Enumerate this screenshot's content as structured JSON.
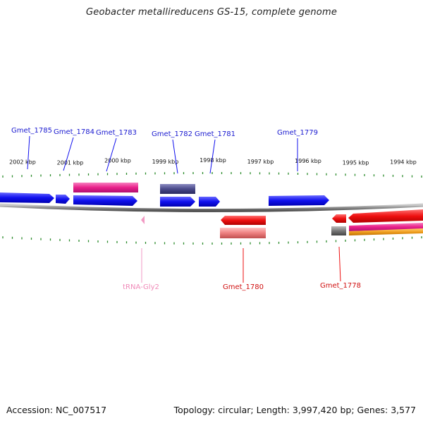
{
  "title": "Geobacter metallireducens GS-15, complete genome",
  "footer": {
    "accession": "Accession: NC_007517",
    "summary": "Topology: circular; Length: 3,997,420 bp; Genes: 3,577"
  },
  "colors": {
    "forward_cds": "#1010ee",
    "reverse_cds": "#ee1010",
    "rrna_pink": "#e8208a",
    "trna_pink": "#f29ac4",
    "dark_slate": "#4a4a8a",
    "salmon": "#ee8080",
    "grey_block": "#777777",
    "orange": "#f0a020",
    "tick_green": "#2a8a2a",
    "backbone": "#8a8a8a"
  },
  "kbp_ticks": [
    {
      "label": "2002 kbp",
      "kbp": 2002
    },
    {
      "label": "2001 kbp",
      "kbp": 2001
    },
    {
      "label": "2000 kbp",
      "kbp": 2000
    },
    {
      "label": "1999 kbp",
      "kbp": 1999
    },
    {
      "label": "1998 kbp",
      "kbp": 1998
    },
    {
      "label": "1997 kbp",
      "kbp": 1997
    },
    {
      "label": "1996 kbp",
      "kbp": 1996
    },
    {
      "label": "1995 kbp",
      "kbp": 1995
    },
    {
      "label": "1994 kbp",
      "kbp": 1994
    }
  ],
  "top_labels": [
    {
      "text": "Gmet_1785"
    },
    {
      "text": "Gmet_1784"
    },
    {
      "text": "Gmet_1783"
    },
    {
      "text": "Gmet_1782"
    },
    {
      "text": "Gmet_1781"
    },
    {
      "text": "Gmet_1779"
    }
  ],
  "bottom_labels": [
    {
      "text": "tRNA-Gly2"
    },
    {
      "text": "Gmet_1780"
    },
    {
      "text": "Gmet_1778"
    }
  ]
}
